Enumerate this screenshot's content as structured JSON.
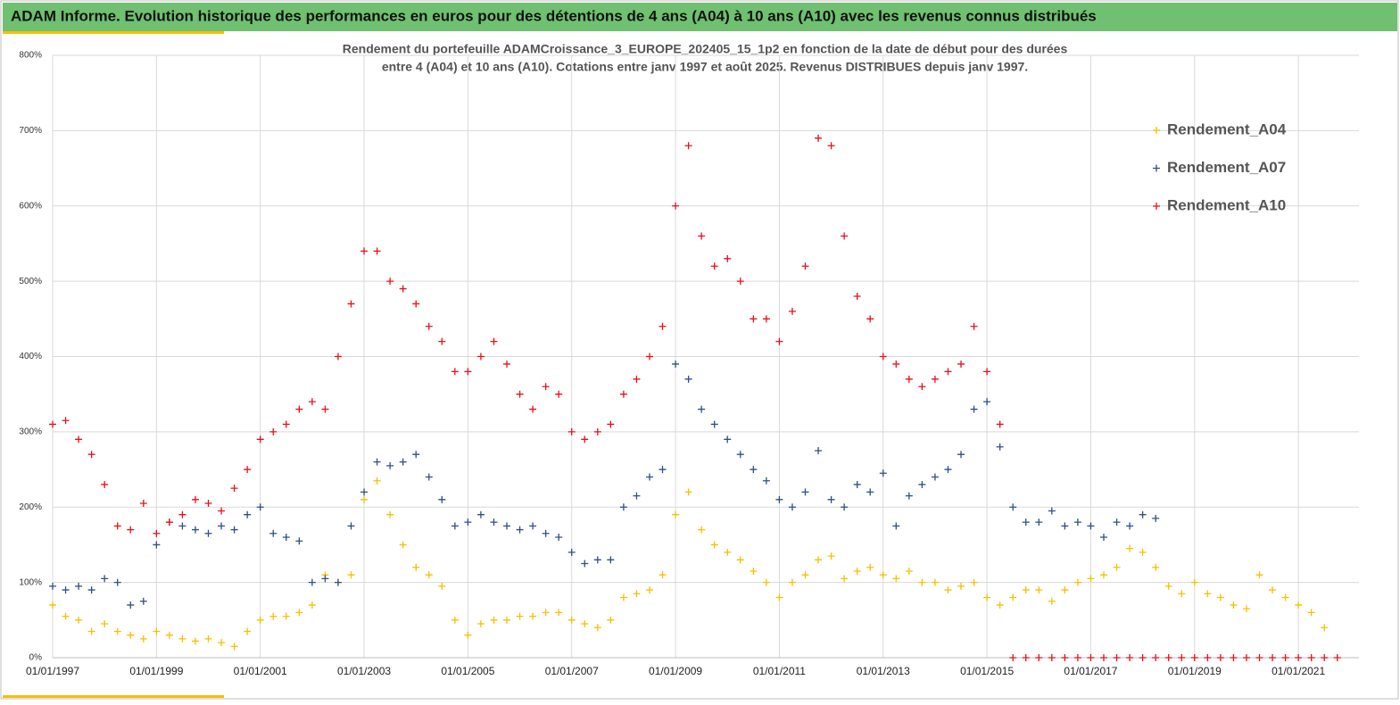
{
  "header": {
    "title": "ADAM Informe. Evolution historique des performances en euros pour des détentions de 4 ans (A04) à 10 ans (A10) avec les revenus connus distribués"
  },
  "chart_data": {
    "type": "scatter",
    "title": [
      "Rendement du portefeuille ADAMCroissance_3_EUROPE_202405_15_1p2  en fonction de la date de début pour des durées",
      "entre 4 (A04) et 10 ans (A10). Cotations entre janv 1997 et août 2025. Revenus DISTRIBUES depuis janv 1997."
    ],
    "x": [
      "1997-01-01",
      "1997-04-01",
      "1997-07-01",
      "1997-10-01",
      "1998-01-01",
      "1998-04-01",
      "1998-07-01",
      "1998-10-01",
      "1999-01-01",
      "1999-04-01",
      "1999-07-01",
      "1999-10-01",
      "2000-01-01",
      "2000-04-01",
      "2000-07-01",
      "2000-10-01",
      "2001-01-01",
      "2001-04-01",
      "2001-07-01",
      "2001-10-01",
      "2002-01-01",
      "2002-04-01",
      "2002-07-01",
      "2002-10-01",
      "2003-01-01",
      "2003-04-01",
      "2003-07-01",
      "2003-10-01",
      "2004-01-01",
      "2004-04-01",
      "2004-07-01",
      "2004-10-01",
      "2005-01-01",
      "2005-04-01",
      "2005-07-01",
      "2005-10-01",
      "2006-01-01",
      "2006-04-01",
      "2006-07-01",
      "2006-10-01",
      "2007-01-01",
      "2007-04-01",
      "2007-07-01",
      "2007-10-01",
      "2008-01-01",
      "2008-04-01",
      "2008-07-01",
      "2008-10-01",
      "2009-01-01",
      "2009-04-01",
      "2009-07-01",
      "2009-10-01",
      "2010-01-01",
      "2010-04-01",
      "2010-07-01",
      "2010-10-01",
      "2011-01-01",
      "2011-04-01",
      "2011-07-01",
      "2011-10-01",
      "2012-01-01",
      "2012-04-01",
      "2012-07-01",
      "2012-10-01",
      "2013-01-01",
      "2013-04-01",
      "2013-07-01",
      "2013-10-01",
      "2014-01-01",
      "2014-04-01",
      "2014-07-01",
      "2014-10-01",
      "2015-01-01",
      "2015-04-01",
      "2015-07-01",
      "2015-10-01",
      "2016-01-01",
      "2016-04-01",
      "2016-07-01",
      "2016-10-01",
      "2017-01-01",
      "2017-04-01",
      "2017-07-01",
      "2017-10-01",
      "2018-01-01",
      "2018-04-01",
      "2018-07-01",
      "2018-10-01",
      "2019-01-01",
      "2019-04-01",
      "2019-07-01",
      "2019-10-01",
      "2020-01-01",
      "2020-04-01",
      "2020-07-01",
      "2020-10-01",
      "2021-01-01",
      "2021-04-01",
      "2021-07-01",
      "2021-10-01"
    ],
    "series": [
      {
        "name": "Rendement_A04",
        "color": "#f5c000",
        "values": [
          70,
          55,
          50,
          35,
          45,
          35,
          30,
          25,
          35,
          30,
          25,
          22,
          25,
          20,
          15,
          35,
          50,
          55,
          55,
          60,
          70,
          110,
          100,
          110,
          210,
          235,
          190,
          150,
          120,
          110,
          95,
          50,
          30,
          45,
          50,
          50,
          55,
          55,
          60,
          60,
          50,
          45,
          40,
          50,
          80,
          85,
          90,
          110,
          190,
          220,
          170,
          150,
          140,
          130,
          115,
          100,
          80,
          100,
          110,
          130,
          135,
          105,
          115,
          120,
          110,
          105,
          115,
          100,
          100,
          90,
          95,
          100,
          80,
          70,
          80,
          90,
          90,
          75,
          90,
          100,
          105,
          110,
          120,
          145,
          140,
          120,
          95,
          85,
          100,
          85,
          80,
          70,
          65,
          110,
          90,
          80,
          70,
          60,
          40,
          null
        ]
      },
      {
        "name": "Rendement_A07",
        "color": "#2f4f85",
        "values": [
          95,
          90,
          95,
          90,
          105,
          100,
          70,
          75,
          150,
          180,
          175,
          170,
          165,
          175,
          170,
          190,
          200,
          165,
          160,
          155,
          100,
          105,
          100,
          175,
          220,
          260,
          255,
          260,
          270,
          240,
          210,
          175,
          180,
          190,
          180,
          175,
          170,
          175,
          165,
          160,
          140,
          125,
          130,
          130,
          200,
          215,
          240,
          250,
          390,
          370,
          330,
          310,
          290,
          270,
          250,
          235,
          210,
          200,
          220,
          275,
          210,
          200,
          230,
          220,
          245,
          175,
          215,
          230,
          240,
          250,
          270,
          330,
          340,
          280,
          200,
          180,
          180,
          195,
          175,
          180,
          175,
          160,
          180,
          175,
          190,
          185,
          null,
          null,
          null,
          null,
          null,
          null,
          null,
          null,
          null,
          null,
          null,
          null,
          null,
          null
        ]
      },
      {
        "name": "Rendement_A10",
        "color": "#e8101a",
        "values": [
          310,
          315,
          290,
          270,
          230,
          175,
          170,
          205,
          165,
          180,
          190,
          210,
          205,
          195,
          225,
          250,
          290,
          300,
          310,
          330,
          340,
          330,
          400,
          470,
          540,
          540,
          500,
          490,
          470,
          440,
          420,
          380,
          380,
          400,
          420,
          390,
          350,
          330,
          360,
          350,
          300,
          290,
          300,
          310,
          350,
          370,
          400,
          440,
          600,
          680,
          560,
          520,
          530,
          500,
          450,
          450,
          420,
          460,
          520,
          690,
          680,
          560,
          480,
          450,
          400,
          390,
          370,
          360,
          370,
          380,
          390,
          440,
          380,
          310,
          0,
          0,
          0,
          0,
          0,
          0,
          0,
          0,
          0,
          0,
          0,
          0,
          0,
          0,
          0,
          0,
          0,
          0,
          0,
          0,
          0,
          0,
          0,
          0,
          0,
          0
        ]
      }
    ],
    "xlim": [
      "1997-01-01",
      "2022-03-01"
    ],
    "xticks": [
      {
        "value": "1997-01-01",
        "label": "01/01/1997"
      },
      {
        "value": "1999-01-01",
        "label": "01/01/1999"
      },
      {
        "value": "2001-01-01",
        "label": "01/01/2001"
      },
      {
        "value": "2003-01-01",
        "label": "01/01/2003"
      },
      {
        "value": "2005-01-01",
        "label": "01/01/2005"
      },
      {
        "value": "2007-01-01",
        "label": "01/01/2007"
      },
      {
        "value": "2009-01-01",
        "label": "01/01/2009"
      },
      {
        "value": "2011-01-01",
        "label": "01/01/2011"
      },
      {
        "value": "2013-01-01",
        "label": "01/01/2013"
      },
      {
        "value": "2015-01-01",
        "label": "01/01/2015"
      },
      {
        "value": "2017-01-01",
        "label": "01/01/2017"
      },
      {
        "value": "2019-01-01",
        "label": "01/01/2019"
      },
      {
        "value": "2021-01-01",
        "label": "01/01/2021"
      }
    ],
    "ylim": [
      0,
      800
    ],
    "yticks": [
      {
        "value": 0,
        "label": "0%"
      },
      {
        "value": 100,
        "label": "100%"
      },
      {
        "value": 200,
        "label": "200%"
      },
      {
        "value": 300,
        "label": "300%"
      },
      {
        "value": 400,
        "label": "400%"
      },
      {
        "value": 500,
        "label": "500%"
      },
      {
        "value": 600,
        "label": "600%"
      },
      {
        "value": 700,
        "label": "700%"
      },
      {
        "value": 800,
        "label": "800%"
      }
    ],
    "grid": true,
    "legend": "right"
  }
}
